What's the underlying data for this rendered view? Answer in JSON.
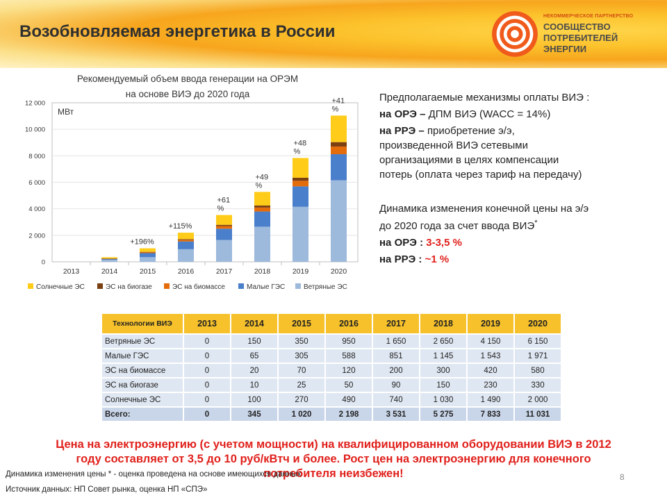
{
  "header": {
    "title": "Возобновляемая энергетика в России",
    "logo_small": "НЕКОММЕРЧЕСКОЕ ПАРТНЕРСТВО",
    "logo_line1": "СООБЩЕСТВО",
    "logo_line2": "ПОТРЕБИТЕЛЕЙ",
    "logo_line3": "ЭНЕРГИИ"
  },
  "chart_title_line1": "Рекомендуемый объем ввода генерации на ОРЭМ",
  "chart_title_line2": "на основе ВИЭ до 2020 года",
  "chart_data": {
    "type": "bar",
    "stacked": true,
    "unit_label": "МВт",
    "categories": [
      "2013",
      "2014",
      "2015",
      "2016",
      "2017",
      "2018",
      "2019",
      "2020"
    ],
    "ylim": [
      0,
      12000
    ],
    "yticks": [
      0,
      2000,
      4000,
      6000,
      8000,
      10000,
      12000
    ],
    "ytick_labels": [
      "0",
      "2 000",
      "4 000",
      "6 000",
      "8 000",
      "10 000",
      "12 000"
    ],
    "series": [
      {
        "name": "Ветряные ЭС",
        "color": "#9db9dc",
        "values": [
          0,
          150,
          350,
          950,
          1650,
          2650,
          4150,
          6150
        ]
      },
      {
        "name": "Малые ГЭС",
        "color": "#4a7fcb",
        "values": [
          0,
          65,
          305,
          588,
          851,
          1145,
          1543,
          1971
        ]
      },
      {
        "name": "ЭС на биомассе",
        "color": "#e46c0a",
        "values": [
          0,
          20,
          70,
          120,
          200,
          300,
          420,
          580
        ]
      },
      {
        "name": "ЭС на биогазе",
        "color": "#7b3f12",
        "values": [
          0,
          10,
          25,
          50,
          90,
          150,
          230,
          330
        ]
      },
      {
        "name": "Солнечные ЭС",
        "color": "#ffcc19",
        "values": [
          0,
          100,
          270,
          490,
          740,
          1030,
          1490,
          2000
        ]
      }
    ],
    "legend_order": [
      "Солнечные ЭС",
      "ЭС на биогазе",
      "ЭС на биомассе",
      "Малые ГЭС",
      "Ветряные ЭС"
    ],
    "annotations": [
      {
        "category": "2015",
        "text": "+196%"
      },
      {
        "category": "2016",
        "text": "+115%"
      },
      {
        "category": "2017",
        "text": "+61 %"
      },
      {
        "category": "2018",
        "text": "+49 %"
      },
      {
        "category": "2019",
        "text": "+48 %"
      },
      {
        "category": "2020",
        "text": "+41 %"
      }
    ]
  },
  "right": {
    "mech_title": "Предполагаемые механизмы оплаты ВИЭ :",
    "ore_label": "на ОРЭ –",
    "ore_text": "ДПМ ВИЭ (WACC = 14%)",
    "rre_label": "на РРЭ –",
    "rre_text1": "приобретение э/э,",
    "rre_text2": "произведенной  ВИЭ сетевыми",
    "rre_text3": "организациями в целях компенсации",
    "rre_text4": "потерь (оплата через тариф на передачу)",
    "dyn_line1": "Динамика изменения конечной цены на э/э",
    "dyn_line2": "до 2020 года за счет ввода ВИЭ",
    "dyn_star": "*",
    "ore2_label": "на ОРЭ :",
    "ore2_value": "3-3,5 %",
    "rre2_label": "на РРЭ :",
    "rre2_value": "~1 %"
  },
  "table": {
    "header_tech": "Технологии ВИЭ",
    "years": [
      "2013",
      "2014",
      "2015",
      "2016",
      "2017",
      "2018",
      "2019",
      "2020"
    ],
    "rows": [
      {
        "name": "Ветряные ЭС",
        "values": [
          "0",
          "150",
          "350",
          "950",
          "1 650",
          "2 650",
          "4 150",
          "6 150"
        ]
      },
      {
        "name": "Малые ГЭС",
        "values": [
          "0",
          "65",
          "305",
          "588",
          "851",
          "1 145",
          "1 543",
          "1 971"
        ]
      },
      {
        "name": "ЭС на биомассе",
        "values": [
          "0",
          "20",
          "70",
          "120",
          "200",
          "300",
          "420",
          "580"
        ]
      },
      {
        "name": "ЭС на биогазе",
        "values": [
          "0",
          "10",
          "25",
          "50",
          "90",
          "150",
          "230",
          "330"
        ]
      },
      {
        "name": "Солнечные ЭС",
        "values": [
          "0",
          "100",
          "270",
          "490",
          "740",
          "1 030",
          "1 490",
          "2 000"
        ]
      }
    ],
    "total": {
      "name": "Всего:",
      "values": [
        "0",
        "345",
        "1 020",
        "2 198",
        "3 531",
        "5 275",
        "7 833",
        "11 031"
      ]
    }
  },
  "bottom": {
    "line1": "Цена на электроэнергию (с учетом мощности) на квалифицированном оборудовании ВИЭ в 2012",
    "line2": "году составляет  от 3,5 до 10 руб/кВтч и более. Рост цен на электроэнергию для конечного",
    "line3": "потребителя неизбежен!"
  },
  "footnote": "Динамика изменения цены * - оценка проведена на основе имеющихся данных",
  "source": "Источник данных: НП Совет рынка, оценка НП «СПЭ»",
  "page_number": "8"
}
